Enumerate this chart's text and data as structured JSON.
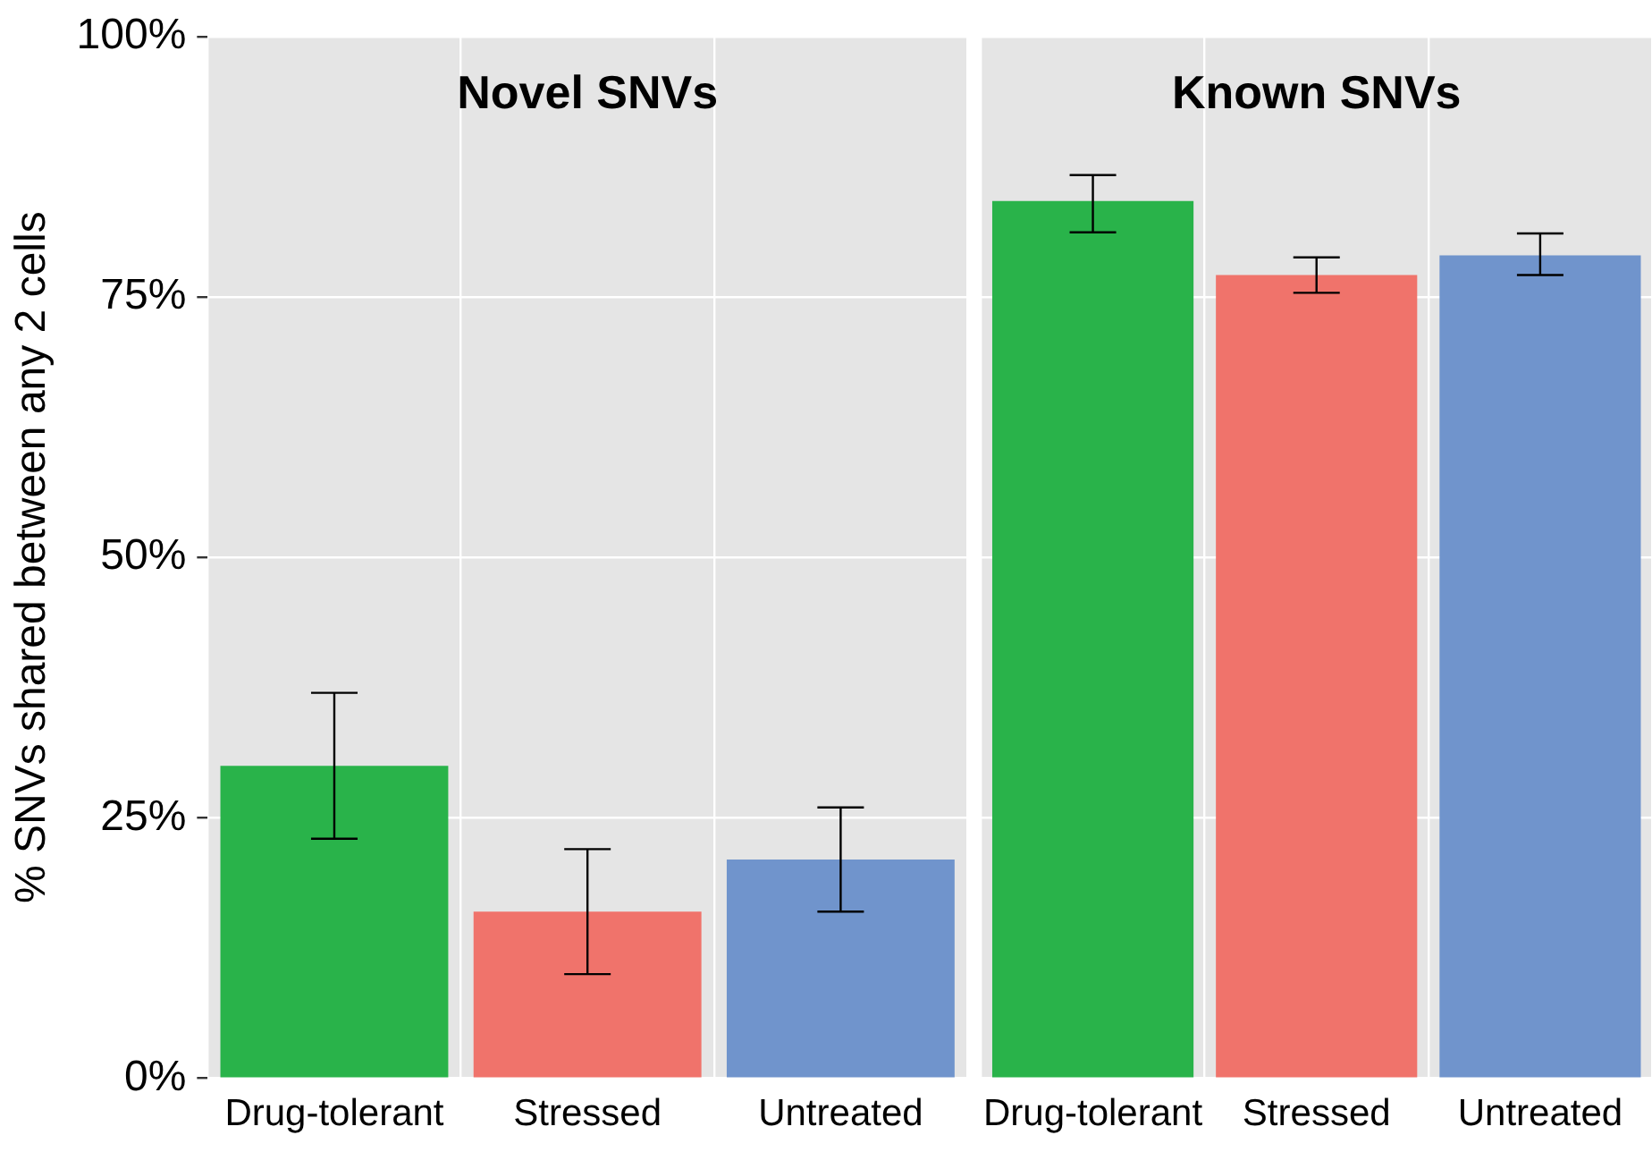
{
  "chart_data": [
    {
      "type": "bar",
      "title": "Novel SNVs",
      "ylabel": "% SNVs shared between any 2 cells",
      "categories": [
        "Drug-tolerant",
        "Stressed",
        "Untreated"
      ],
      "values": [
        30,
        16,
        21
      ],
      "colors": [
        "#29b34a",
        "#f0736b",
        "#7094cc"
      ],
      "errors": [
        [
          23,
          37
        ],
        [
          10,
          22
        ],
        [
          16,
          26
        ]
      ],
      "ylim": [
        0,
        100
      ],
      "yticks": [
        {
          "value": 0,
          "label": "0%"
        },
        {
          "value": 25,
          "label": "25%"
        },
        {
          "value": 50,
          "label": "50%"
        },
        {
          "value": 75,
          "label": "75%"
        },
        {
          "value": 100,
          "label": "100%"
        }
      ],
      "grid": true
    },
    {
      "type": "bar",
      "title": "Known SNVs",
      "categories": [
        "Drug-tolerant",
        "Stressed",
        "Untreated"
      ],
      "values": [
        84.2,
        77.1,
        79
      ],
      "colors": [
        "#29b34a",
        "#f0736b",
        "#7094cc"
      ],
      "errors": [
        [
          81.2,
          86.7
        ],
        [
          75.4,
          78.8
        ],
        [
          77.1,
          81.1
        ]
      ],
      "ylim": [
        0,
        100
      ],
      "yticks": [
        {
          "value": 0,
          "label": null
        },
        {
          "value": 25,
          "label": null
        },
        {
          "value": 50,
          "label": null
        },
        {
          "value": 75,
          "label": null
        },
        {
          "value": 100,
          "label": null
        }
      ],
      "grid": true,
      "tick_labels": "x"
    }
  ]
}
